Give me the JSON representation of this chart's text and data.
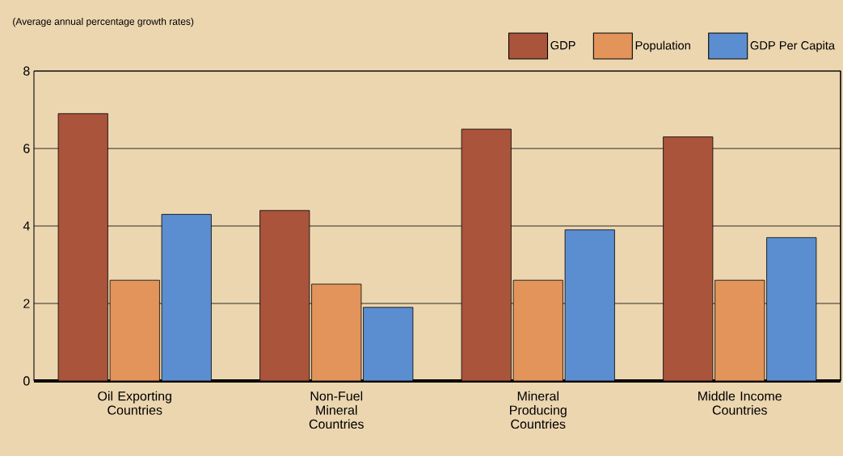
{
  "chart_data": {
    "type": "bar",
    "annotations": [
      "(Average annual percentage growth rates)"
    ],
    "categories": [
      "Oil Exporting Countries",
      "Non-Fuel Mineral Countries",
      "Mineral Producing Countries",
      "Middle Income Countries"
    ],
    "series": [
      {
        "name": "GDP",
        "color": "#a9543b",
        "values": [
          6.9,
          4.4,
          6.5,
          6.3
        ]
      },
      {
        "name": "Population",
        "color": "#e3945b",
        "values": [
          2.6,
          2.5,
          2.6,
          2.6
        ]
      },
      {
        "name": "GDP Per Capita",
        "color": "#5b8ed0",
        "values": [
          4.3,
          1.9,
          3.9,
          3.7
        ]
      }
    ],
    "ylim": [
      0,
      8
    ],
    "yticks": [
      0,
      2,
      4,
      6,
      8
    ],
    "grid": "y",
    "legend": "top right"
  }
}
